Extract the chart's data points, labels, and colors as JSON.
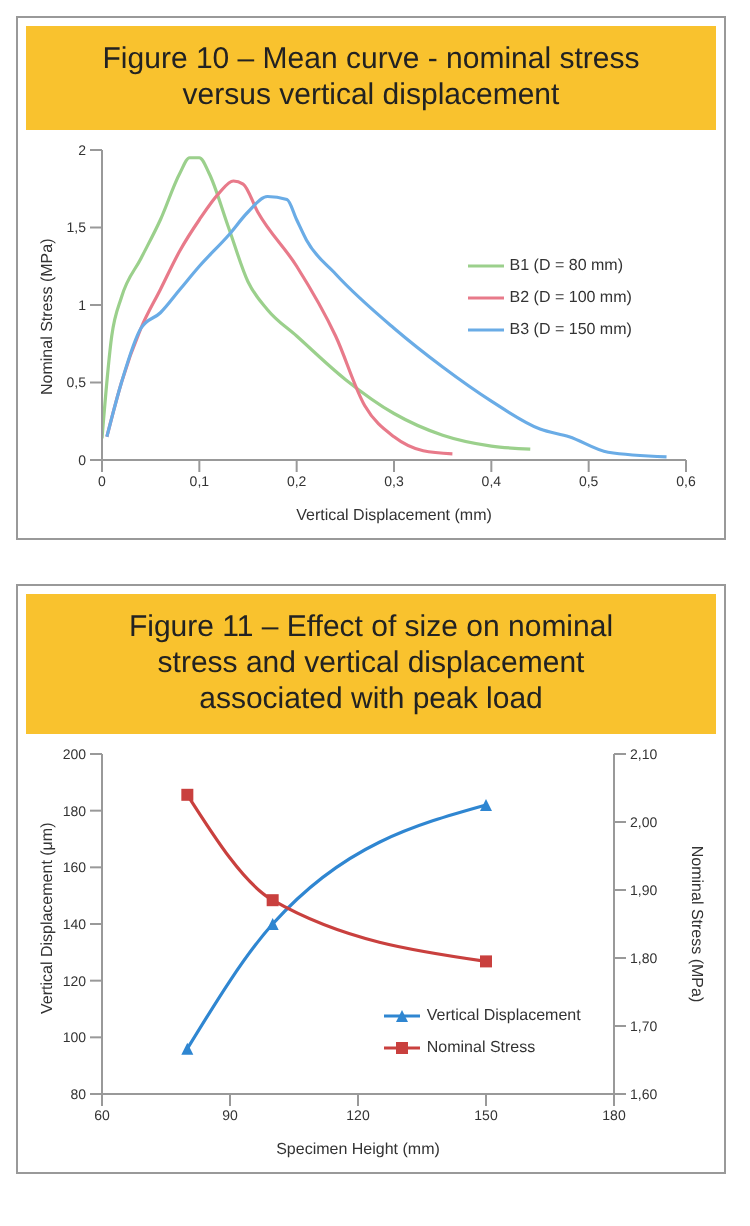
{
  "chart_data": [
    {
      "type": "line",
      "title": "Figure 10 – Mean curve - nominal stress versus vertical displacement",
      "xlabel": "Vertical Displacement (mm)",
      "ylabel": "Nominal Stress (MPa)",
      "xlim": [
        0,
        0.6
      ],
      "xticks": [
        0,
        {
          "value": 0.1,
          "label": "0,1"
        },
        {
          "value": 0.2,
          "label": "0,2"
        },
        {
          "value": 0.3,
          "label": "0,3"
        },
        {
          "value": 0.4,
          "label": "0,4"
        },
        {
          "value": 0.5,
          "label": "0,5"
        },
        {
          "value": 0.6,
          "label": "0,6"
        }
      ],
      "ylim": [
        0,
        2
      ],
      "yticks": [
        0,
        {
          "value": 0.5,
          "label": "0,5"
        },
        1,
        {
          "value": 1.5,
          "label": "1,5"
        },
        2
      ],
      "grid": false,
      "legend": "right",
      "marker": "none",
      "series": [
        {
          "name": "B1 (D = 80 mm)",
          "color": "#9bd08c",
          "x": [
            0,
            0.01,
            0.02,
            0.04,
            0.06,
            0.08,
            0.09,
            0.1,
            0.11,
            0.13,
            0.15,
            0.17,
            0.2,
            0.25,
            0.3,
            0.35,
            0.4,
            0.44
          ],
          "values": [
            0.14,
            0.8,
            1.05,
            1.3,
            1.55,
            1.85,
            1.95,
            1.95,
            1.85,
            1.5,
            1.15,
            0.97,
            0.8,
            0.52,
            0.3,
            0.16,
            0.09,
            0.07
          ]
        },
        {
          "name": "B2 (D = 100 mm)",
          "color": "#e87a8a",
          "x": [
            0.005,
            0.02,
            0.04,
            0.06,
            0.08,
            0.1,
            0.12,
            0.135,
            0.145,
            0.16,
            0.2,
            0.24,
            0.27,
            0.3,
            0.33,
            0.36
          ],
          "values": [
            0.15,
            0.5,
            0.85,
            1.1,
            1.35,
            1.55,
            1.72,
            1.8,
            1.78,
            1.6,
            1.25,
            0.8,
            0.35,
            0.15,
            0.06,
            0.04
          ]
        },
        {
          "name": "B3 (D = 150 mm)",
          "color": "#6aace6",
          "x": [
            0.005,
            0.02,
            0.04,
            0.06,
            0.08,
            0.1,
            0.13,
            0.15,
            0.17,
            0.19,
            0.2,
            0.21,
            0.24,
            0.3,
            0.35,
            0.4,
            0.45,
            0.48,
            0.52,
            0.58
          ],
          "values": [
            0.15,
            0.5,
            0.85,
            0.95,
            1.1,
            1.25,
            1.45,
            1.6,
            1.7,
            1.68,
            1.55,
            1.42,
            1.2,
            0.85,
            0.6,
            0.38,
            0.2,
            0.15,
            0.05,
            0.02
          ]
        }
      ]
    },
    {
      "type": "line",
      "title": "Figure 11 – Effect of size on nominal stress and vertical displacement associated with peak load",
      "xlabel": "Specimen Height (mm)",
      "ylabel": "Vertical Displacement (μm)",
      "y2label": "Nominal Stress (MPa)",
      "xlim": [
        60,
        180
      ],
      "xticks": [
        60,
        90,
        120,
        150,
        180
      ],
      "ylim": [
        80,
        200
      ],
      "yticks": [
        80,
        100,
        120,
        140,
        160,
        180,
        200
      ],
      "y2lim": [
        1.6,
        2.1
      ],
      "y2ticks": [
        {
          "value": 1.6,
          "label": "1,60"
        },
        {
          "value": 1.7,
          "label": "1,70"
        },
        {
          "value": 1.8,
          "label": "1,80"
        },
        {
          "value": 1.9,
          "label": "1,90"
        },
        {
          "value": 2.0,
          "label": "2,00"
        },
        {
          "value": 2.1,
          "label": "2,10"
        }
      ],
      "grid": false,
      "legend": "bottom right",
      "series": [
        {
          "name": "Vertical Displacement",
          "color": "#2f86d1",
          "marker": "triangle",
          "x": [
            80,
            100,
            150
          ],
          "values": [
            96,
            140,
            182
          ]
        },
        {
          "name": "Nominal Stress",
          "color": "#c9403e",
          "marker": "square",
          "axis": "y2",
          "x": [
            80,
            100,
            150
          ],
          "values": [
            2.04,
            1.885,
            1.795
          ]
        }
      ]
    }
  ]
}
